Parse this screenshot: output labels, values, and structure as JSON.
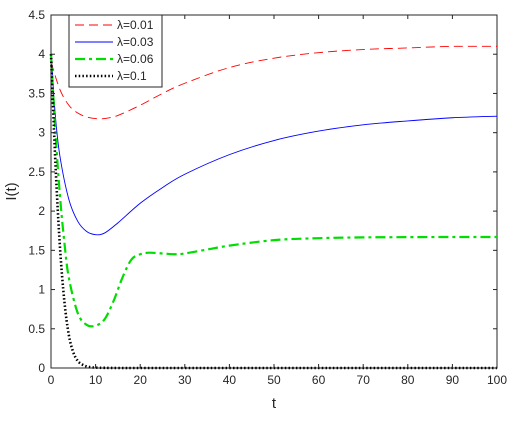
{
  "chart_data": {
    "type": "line",
    "title": "",
    "xlabel": "t",
    "ylabel": "I(t)",
    "xlim": [
      0,
      100
    ],
    "ylim": [
      0,
      4.5
    ],
    "xticks": [
      0,
      10,
      20,
      30,
      40,
      50,
      60,
      70,
      80,
      90,
      100
    ],
    "yticks": [
      0,
      0.5,
      1,
      1.5,
      2,
      2.5,
      3,
      3.5,
      4,
      4.5
    ],
    "grid": false,
    "legend_position": "top-left",
    "series": [
      {
        "name": "λ=0.01",
        "color": "#ff0000",
        "style": "dashed",
        "x": [
          0,
          2,
          4,
          6,
          8,
          10,
          12,
          15,
          20,
          25,
          30,
          40,
          50,
          60,
          70,
          80,
          90,
          100
        ],
        "y": [
          3.9,
          3.55,
          3.35,
          3.25,
          3.2,
          3.18,
          3.18,
          3.22,
          3.35,
          3.5,
          3.63,
          3.83,
          3.95,
          4.02,
          4.06,
          4.08,
          4.1,
          4.1
        ]
      },
      {
        "name": "λ=0.03",
        "color": "#0000ff",
        "style": "solid",
        "x": [
          0,
          1,
          2,
          4,
          6,
          8,
          10,
          12,
          15,
          20,
          25,
          30,
          40,
          50,
          60,
          70,
          80,
          90,
          100
        ],
        "y": [
          4.0,
          3.2,
          2.7,
          2.15,
          1.87,
          1.74,
          1.7,
          1.72,
          1.85,
          2.1,
          2.3,
          2.47,
          2.72,
          2.9,
          3.02,
          3.1,
          3.15,
          3.19,
          3.21
        ]
      },
      {
        "name": "λ=0.06",
        "color": "#00dd00",
        "style": "dashdot",
        "x": [
          0,
          1,
          2,
          3,
          4,
          6,
          8,
          10,
          12,
          14,
          16,
          18,
          20,
          22,
          25,
          28,
          30,
          35,
          40,
          50,
          60,
          70,
          80,
          90,
          100
        ],
        "y": [
          4.0,
          3.0,
          2.2,
          1.6,
          1.15,
          0.7,
          0.55,
          0.54,
          0.62,
          0.85,
          1.15,
          1.38,
          1.45,
          1.47,
          1.46,
          1.45,
          1.46,
          1.51,
          1.56,
          1.63,
          1.655,
          1.665,
          1.668,
          1.67,
          1.67
        ]
      },
      {
        "name": "λ=0.1",
        "color": "#000000",
        "style": "dotted",
        "x": [
          0,
          1,
          2,
          3,
          4,
          5,
          6,
          7,
          8,
          9,
          10,
          12,
          15,
          20,
          30,
          50,
          100
        ],
        "y": [
          4.0,
          2.6,
          1.55,
          0.85,
          0.42,
          0.2,
          0.09,
          0.045,
          0.02,
          0.01,
          0.005,
          0.002,
          0.0,
          0.0,
          0.0,
          0.0,
          0.0
        ]
      }
    ]
  }
}
